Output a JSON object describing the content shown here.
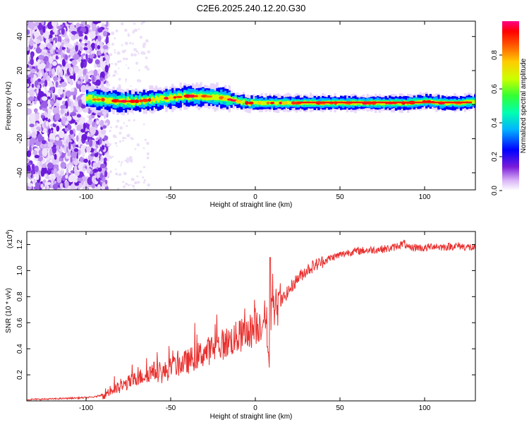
{
  "title": "C2E6.2025.240.12.20.G30",
  "chart_data": [
    {
      "type": "heatmap",
      "xlabel": "Height of straight line (km)",
      "ylabel": "Frequency (Hz)",
      "xlim": [
        -135,
        130
      ],
      "ylim": [
        -50,
        49
      ],
      "xticks": [
        -100,
        -50,
        0,
        50,
        100
      ],
      "xtick_labels": [
        "-100",
        "-50",
        "0",
        "50",
        "100"
      ],
      "yticks": [
        -40,
        -20,
        0,
        20,
        40
      ],
      "ytick_labels": [
        "-40",
        "-20",
        "0",
        "20",
        "40"
      ],
      "colorbar": {
        "label": "Normalized spectral amplitude",
        "range": [
          0,
          1
        ],
        "ticks": [
          0.0,
          0.2,
          0.4,
          0.6,
          0.8
        ],
        "tick_labels": [
          "0.0",
          "0.2",
          "0.4",
          "0.6",
          "0.8"
        ],
        "colors": [
          "#ffffff",
          "#d9b3f7",
          "#7a1cd9",
          "#0000ff",
          "#00b3ff",
          "#00ffb0",
          "#33ff33",
          "#ccff00",
          "#ffcc00",
          "#ff5500",
          "#ff0000",
          "#ff0088"
        ]
      },
      "ridge": {
        "x": [
          -100,
          -95,
          -90,
          -80,
          -70,
          -60,
          -50,
          -40,
          -30,
          -20,
          -10,
          -5,
          0,
          10,
          20,
          30,
          50,
          70,
          90,
          100,
          110,
          120,
          130
        ],
        "frequency": [
          4,
          3,
          3,
          2,
          2,
          3,
          4,
          5,
          5,
          4,
          2,
          1,
          1,
          1,
          1,
          1,
          1,
          1,
          1,
          2,
          1,
          1,
          2
        ]
      }
    },
    {
      "type": "line",
      "xlabel": "Height of straight line (km)",
      "ylabel": "SNR (10 * v/v)",
      "y_multiplier_label": "(x10",
      "y_multiplier_exp": "4",
      "y_multiplier_close": ")",
      "xlim": [
        -135,
        130
      ],
      "ylim": [
        0,
        1.3
      ],
      "xticks": [
        -100,
        -50,
        0,
        50,
        100
      ],
      "xtick_labels": [
        "-100",
        "-50",
        "0",
        "50",
        "100"
      ],
      "yticks": [
        0.2,
        0.4,
        0.6,
        0.8,
        1.0,
        1.2
      ],
      "ytick_labels": [
        "0.2",
        "0.4",
        "0.6",
        "0.8",
        "1.0",
        "1.2"
      ],
      "color": "#e8302e",
      "x": [
        -135,
        -120,
        -110,
        -100,
        -95,
        -90,
        -85,
        -80,
        -75,
        -70,
        -65,
        -60,
        -55,
        -50,
        -45,
        -40,
        -35,
        -30,
        -25,
        -20,
        -15,
        -10,
        -5,
        0,
        5,
        8,
        10,
        15,
        20,
        25,
        30,
        35,
        40,
        45,
        50,
        55,
        60,
        70,
        80,
        88,
        90,
        95,
        100,
        105,
        110,
        120,
        125,
        130
      ],
      "y": [
        0.01,
        0.015,
        0.02,
        0.025,
        0.03,
        0.05,
        0.08,
        0.1,
        0.14,
        0.17,
        0.2,
        0.23,
        0.21,
        0.25,
        0.28,
        0.3,
        0.34,
        0.37,
        0.4,
        0.43,
        0.46,
        0.49,
        0.52,
        0.56,
        0.62,
        0.7,
        0.68,
        0.76,
        0.85,
        0.94,
        1.0,
        1.04,
        1.07,
        1.1,
        1.12,
        1.14,
        1.15,
        1.16,
        1.17,
        1.21,
        1.17,
        1.18,
        1.17,
        1.19,
        1.18,
        1.19,
        1.18,
        1.17
      ]
    }
  ]
}
